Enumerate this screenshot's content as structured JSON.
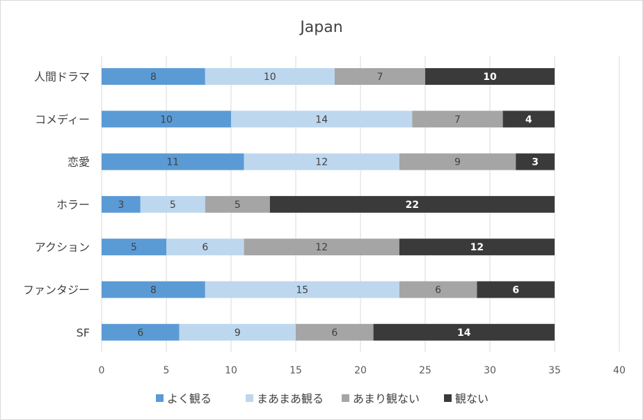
{
  "chart_data": {
    "type": "bar",
    "orientation": "horizontal",
    "stacked": true,
    "title": "Japan",
    "categories": [
      "人間ドラマ",
      "コメディー",
      "恋愛",
      "ホラー",
      "アクション",
      "ファンタジー",
      "SF"
    ],
    "series": [
      {
        "name": "よく観る",
        "color": "#5b9bd5",
        "values": [
          8,
          10,
          11,
          3,
          5,
          8,
          6
        ]
      },
      {
        "name": "まあまあ観る",
        "color": "#bdd7ee",
        "values": [
          10,
          14,
          12,
          5,
          6,
          15,
          9
        ]
      },
      {
        "name": "あまり観ない",
        "color": "#a5a5a5",
        "values": [
          7,
          7,
          9,
          5,
          12,
          6,
          6
        ]
      },
      {
        "name": "観ない",
        "color": "#3a3a3a",
        "values": [
          10,
          4,
          3,
          22,
          12,
          6,
          14
        ]
      }
    ],
    "xlim": [
      0,
      40
    ],
    "xticks": [
      0,
      5,
      10,
      15,
      20,
      25,
      30,
      35,
      40
    ],
    "grid": true,
    "legend_position": "bottom"
  }
}
